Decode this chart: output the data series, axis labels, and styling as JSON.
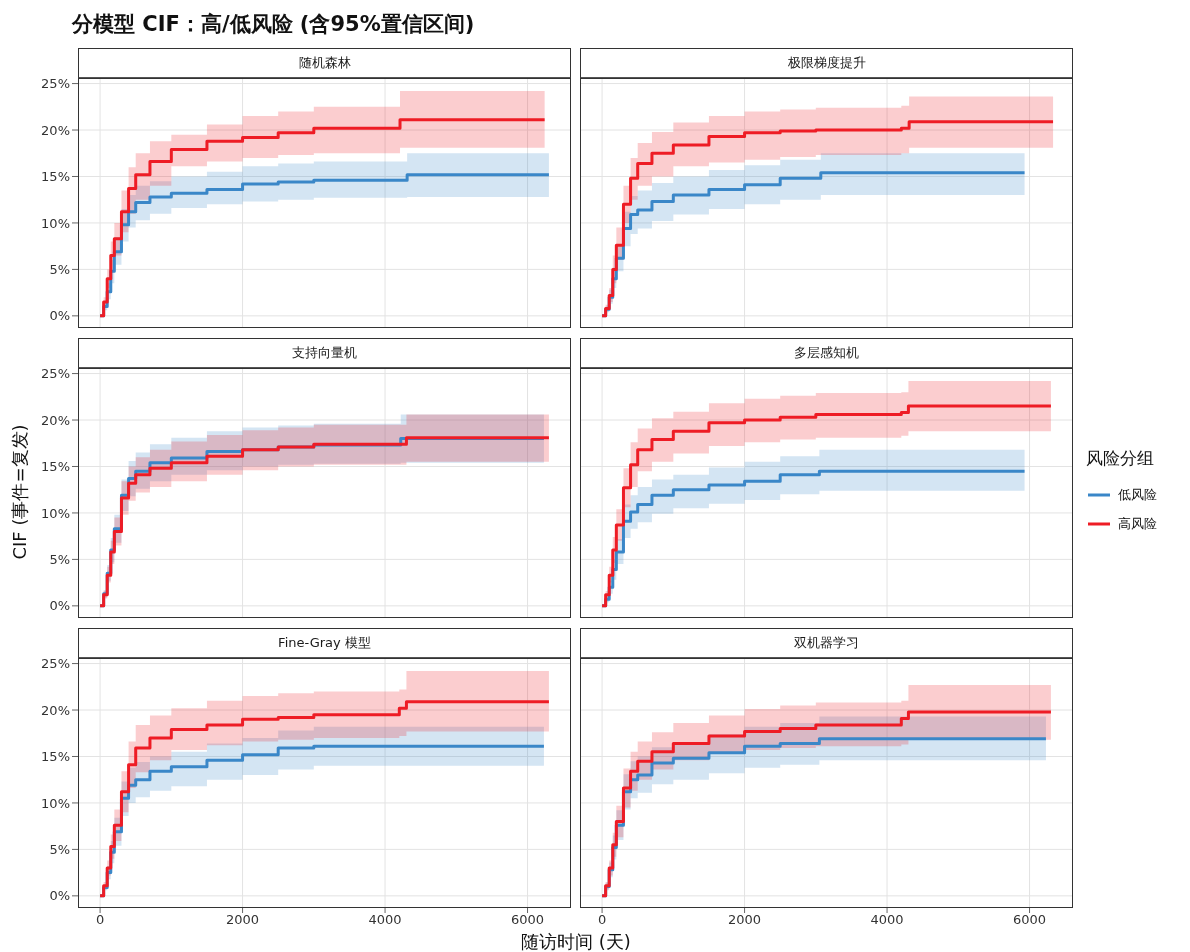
{
  "chart_data": [
    {
      "type": "step",
      "title": "随机森林",
      "annotations": [
        "分模型 CIF：高/低风险 (含95%置信区间)"
      ],
      "legend": "right",
      "legend_title": "风险分组",
      "xlim": [
        -310,
        6610
      ],
      "xticks": [
        0,
        2000,
        4000,
        6000
      ],
      "ylim": [
        -1.2,
        25.6
      ],
      "yticks": [
        {
          "value": 0,
          "label": "0%"
        },
        {
          "value": 5,
          "label": "5%"
        },
        {
          "value": 10,
          "label": "10%"
        },
        {
          "value": 15,
          "label": "15%"
        },
        {
          "value": 20,
          "label": "20%"
        },
        {
          "value": 25,
          "label": "25%"
        }
      ],
      "tick_labels": "y",
      "grid": true,
      "marker": "none",
      "line_style": "solid",
      "series": [
        {
          "name": "低风险",
          "color": "#3a87c8",
          "x": [
            0,
            50,
            100,
            150,
            200,
            300,
            400,
            500,
            700,
            1000,
            1500,
            2000,
            2500,
            3000,
            4310,
            6300
          ],
          "values": [
            0,
            1,
            2.6,
            4.8,
            6.9,
            9.8,
            11.2,
            12.2,
            12.8,
            13.2,
            13.6,
            14.2,
            14.4,
            14.6,
            15.2,
            15.2
          ],
          "lower": [
            0,
            0.6,
            1.8,
            3.5,
            5.5,
            8,
            9.5,
            10.3,
            11,
            11.6,
            12,
            12.3,
            12.5,
            12.7,
            12.8,
            12.8
          ],
          "upper": [
            0,
            1.5,
            3.5,
            6,
            8.5,
            11.5,
            13,
            14,
            14.5,
            15,
            15.5,
            16.1,
            16.4,
            16.6,
            17.5,
            17.5
          ]
        },
        {
          "name": "高风险",
          "color": "#ee1c25",
          "x": [
            0,
            50,
            100,
            150,
            200,
            300,
            400,
            500,
            700,
            1000,
            1500,
            2000,
            2500,
            3000,
            4210,
            6240
          ],
          "values": [
            0,
            1.5,
            4,
            6.5,
            8.3,
            11.2,
            13.7,
            15.2,
            16.6,
            17.9,
            18.8,
            19.2,
            19.7,
            20.2,
            21.1,
            21.1
          ],
          "lower": [
            0,
            1,
            3,
            5,
            6.5,
            9,
            11,
            12.5,
            14,
            16.1,
            16.6,
            17,
            17.3,
            17.5,
            18.1,
            18.1
          ],
          "upper": [
            0,
            2,
            5,
            8,
            10,
            13.5,
            16,
            17.5,
            18.8,
            19.5,
            20.6,
            21.5,
            22,
            22.5,
            24.2,
            24.2
          ]
        }
      ]
    },
    {
      "type": "step",
      "title": "极限梯度提升",
      "xlim": [
        -310,
        6610
      ],
      "xticks": [
        0,
        2000,
        4000,
        6000
      ],
      "ylim": [
        -1.2,
        25.6
      ],
      "yticks": [
        0,
        5,
        10,
        15,
        20,
        25
      ],
      "tick_labels": false,
      "grid": true,
      "marker": "none",
      "line_style": "solid",
      "series": [
        {
          "color": "#3a87c8",
          "x": [
            0,
            50,
            100,
            150,
            200,
            300,
            400,
            500,
            700,
            1000,
            1500,
            2000,
            2500,
            3070,
            5930
          ],
          "values": [
            0,
            0.7,
            2,
            4,
            6.2,
            9.4,
            10.9,
            11.4,
            12.3,
            13,
            13.6,
            14.1,
            14.8,
            15.4,
            15.4
          ],
          "lower": [
            0,
            0.4,
            1.3,
            3,
            4.8,
            7.5,
            8.8,
            9.4,
            10.2,
            10.9,
            11.5,
            12,
            12.5,
            13,
            13
          ],
          "upper": [
            0,
            1,
            2.8,
            5.2,
            7.6,
            11.2,
            12.9,
            13.5,
            14.3,
            15,
            15.7,
            16.2,
            16.8,
            17.5,
            17.5
          ]
        },
        {
          "color": "#ee1c25",
          "x": [
            0,
            50,
            100,
            150,
            200,
            300,
            400,
            500,
            700,
            1000,
            1500,
            2000,
            2500,
            3000,
            4200,
            4310,
            6330
          ],
          "values": [
            0,
            0.8,
            2.2,
            5,
            7.6,
            12,
            14.8,
            16.4,
            17.5,
            18.4,
            19.3,
            19.7,
            19.9,
            20,
            20.2,
            20.9,
            20.9
          ],
          "lower": [
            0,
            0.5,
            1.5,
            3.5,
            6,
            10,
            12.5,
            14,
            15,
            16.1,
            16.5,
            16.8,
            17.1,
            17.3,
            17.5,
            18.1,
            18.1
          ],
          "upper": [
            0,
            1.2,
            3,
            6.5,
            9.5,
            14,
            17,
            18.6,
            19.8,
            20.8,
            21.5,
            22,
            22.2,
            22.4,
            22.6,
            23.6,
            23.6
          ]
        }
      ]
    },
    {
      "type": "step",
      "title": "支持向量机",
      "ylabel": "CIF (事件=复发)",
      "xlim": [
        -310,
        6610
      ],
      "xticks": [
        0,
        2000,
        4000,
        6000
      ],
      "ylim": [
        -1.2,
        25.6
      ],
      "yticks": [
        {
          "value": 0,
          "label": "0%"
        },
        {
          "value": 5,
          "label": "5%"
        },
        {
          "value": 10,
          "label": "10%"
        },
        {
          "value": 15,
          "label": "15%"
        },
        {
          "value": 20,
          "label": "20%"
        },
        {
          "value": 25,
          "label": "25%"
        }
      ],
      "tick_labels": "y",
      "grid": true,
      "marker": "none",
      "line_style": "solid",
      "series": [
        {
          "color": "#3a87c8",
          "x": [
            0,
            50,
            100,
            150,
            200,
            300,
            400,
            500,
            700,
            1000,
            1500,
            2000,
            2500,
            3000,
            4220,
            6230
          ],
          "values": [
            0,
            1.3,
            3.5,
            6,
            8.3,
            11.9,
            13.7,
            14.5,
            15.4,
            15.9,
            16.6,
            16.8,
            17.1,
            17.3,
            18,
            18
          ],
          "lower": [
            0,
            0.9,
            2.7,
            4.7,
            6.8,
            10.2,
            11.8,
            12.6,
            13.4,
            14.1,
            14.6,
            15,
            15.2,
            15.3,
            15.4,
            15.4
          ],
          "upper": [
            0,
            1.7,
            4.4,
            7.3,
            9.8,
            13.6,
            15.6,
            16.5,
            17.4,
            18.1,
            18.8,
            19.2,
            19.4,
            19.6,
            20.6,
            20.6
          ]
        },
        {
          "color": "#ee1c25",
          "x": [
            0,
            50,
            100,
            150,
            200,
            300,
            400,
            500,
            700,
            1000,
            1500,
            2000,
            2500,
            3000,
            4300,
            6300
          ],
          "values": [
            0,
            1.2,
            3.3,
            5.8,
            8,
            11.6,
            13.2,
            14.1,
            14.8,
            15.4,
            16.1,
            16.8,
            17.1,
            17.4,
            18.1,
            18.1
          ],
          "lower": [
            0,
            0.8,
            2.5,
            4.5,
            6.5,
            9.8,
            11.3,
            12.2,
            12.8,
            13.4,
            14.1,
            14.6,
            15,
            15.2,
            15.5,
            15.5
          ],
          "upper": [
            0,
            1.6,
            4.2,
            7,
            9.5,
            13.4,
            15,
            16,
            16.8,
            17.7,
            18.4,
            18.9,
            19.2,
            19.5,
            20.6,
            20.6
          ]
        }
      ]
    },
    {
      "type": "step",
      "title": "多层感知机",
      "xlim": [
        -310,
        6610
      ],
      "xticks": [
        0,
        2000,
        4000,
        6000
      ],
      "ylim": [
        -1.2,
        25.6
      ],
      "yticks": [
        0,
        5,
        10,
        15,
        20,
        25
      ],
      "tick_labels": false,
      "grid": true,
      "marker": "none",
      "line_style": "solid",
      "series": [
        {
          "color": "#3a87c8",
          "x": [
            0,
            50,
            100,
            150,
            200,
            300,
            400,
            500,
            700,
            1000,
            1500,
            2000,
            2500,
            3050,
            5930
          ],
          "values": [
            0,
            0.7,
            2,
            3.9,
            5.8,
            9.1,
            10.1,
            10.9,
            11.9,
            12.5,
            13,
            13.4,
            14.1,
            14.5,
            14.5
          ],
          "lower": [
            0,
            0.4,
            1.3,
            2.8,
            4.5,
            7.3,
            8.3,
            9,
            9.9,
            10.5,
            11,
            11.4,
            12,
            12.4,
            12.4
          ],
          "upper": [
            0,
            1,
            2.7,
            5,
            7.2,
            10.9,
            11.9,
            12.8,
            13.6,
            14.1,
            14.9,
            15.5,
            16.1,
            16.8,
            16.8
          ]
        },
        {
          "color": "#ee1c25",
          "x": [
            0,
            50,
            100,
            150,
            200,
            300,
            400,
            500,
            700,
            1000,
            1500,
            2000,
            2500,
            3000,
            4200,
            4300,
            6300
          ],
          "values": [
            0,
            1.2,
            3.3,
            6,
            8.7,
            12.7,
            15.2,
            16.8,
            17.9,
            18.8,
            19.7,
            20,
            20.3,
            20.6,
            20.8,
            21.5,
            21.5
          ],
          "lower": [
            0,
            0.8,
            2.5,
            4.6,
            7,
            10.6,
            12.8,
            14.5,
            15.5,
            16.4,
            17.2,
            17.6,
            17.9,
            18.1,
            18.3,
            18.8,
            18.8
          ],
          "upper": [
            0,
            1.6,
            4.2,
            7.4,
            10.4,
            14.8,
            17.6,
            19.1,
            20.2,
            20.9,
            21.8,
            22.3,
            22.6,
            22.9,
            23,
            24.2,
            24.2
          ]
        }
      ]
    },
    {
      "type": "step",
      "title": "Fine-Gray 模型",
      "xlabel": "随访时间 (天)",
      "xlim": [
        -310,
        6610
      ],
      "xticks": [
        0,
        2000,
        4000,
        6000
      ],
      "ylim": [
        -1.2,
        25.6
      ],
      "yticks": [
        {
          "value": 0,
          "label": "0%"
        },
        {
          "value": 5,
          "label": "5%"
        },
        {
          "value": 10,
          "label": "10%"
        },
        {
          "value": 15,
          "label": "15%"
        },
        {
          "value": 20,
          "label": "20%"
        },
        {
          "value": 25,
          "label": "25%"
        }
      ],
      "grid": true,
      "marker": "none",
      "line_style": "solid",
      "series": [
        {
          "color": "#3a87c8",
          "x": [
            0,
            50,
            100,
            150,
            200,
            300,
            400,
            500,
            700,
            1000,
            1500,
            2000,
            2500,
            3000,
            6230
          ],
          "values": [
            0,
            0.9,
            2.5,
            4.7,
            6.9,
            10.5,
            11.9,
            12.5,
            13.4,
            13.9,
            14.6,
            15.2,
            15.9,
            16.1,
            16.1
          ],
          "lower": [
            0,
            0.6,
            1.8,
            3.5,
            5.4,
            8.6,
            10,
            10.6,
            11.3,
            11.8,
            12.5,
            13,
            13.6,
            14,
            14
          ],
          "upper": [
            0,
            1.2,
            3.2,
            5.9,
            8.4,
            12.3,
            13.8,
            14.4,
            15,
            15.5,
            16.4,
            17,
            17.8,
            18.2,
            18.2
          ]
        },
        {
          "color": "#ee1c25",
          "x": [
            0,
            50,
            100,
            150,
            200,
            300,
            400,
            500,
            700,
            1000,
            1500,
            2000,
            2500,
            3000,
            4200,
            4300,
            6300
          ],
          "values": [
            0,
            1.1,
            3,
            5.3,
            7.6,
            11.2,
            14.1,
            15.9,
            17,
            17.9,
            18.4,
            19,
            19.2,
            19.5,
            20.2,
            20.9,
            20.9
          ],
          "lower": [
            0,
            0.7,
            2.2,
            4,
            5.9,
            9,
            11.6,
            13.3,
            14.6,
            15.7,
            16.2,
            16.6,
            16.8,
            17,
            17.2,
            17.7,
            17.7
          ],
          "upper": [
            0,
            1.5,
            3.8,
            6.6,
            9.3,
            13.4,
            16.6,
            18.4,
            19.4,
            20.2,
            21,
            21.5,
            21.8,
            22,
            22.2,
            24.2,
            24.2
          ]
        }
      ]
    },
    {
      "type": "step",
      "title": "双机器学习",
      "xlim": [
        -310,
        6610
      ],
      "xticks": [
        0,
        2000,
        4000,
        6000
      ],
      "ylim": [
        -1.2,
        25.6
      ],
      "yticks": [
        0,
        5,
        10,
        15,
        20,
        25
      ],
      "tick_labels": "x",
      "grid": true,
      "marker": "none",
      "line_style": "solid",
      "series": [
        {
          "color": "#3a87c8",
          "x": [
            0,
            50,
            100,
            150,
            200,
            300,
            400,
            500,
            700,
            1000,
            1500,
            2000,
            2500,
            3050,
            6230
          ],
          "values": [
            0,
            1,
            2.8,
            5.2,
            7.6,
            11.2,
            12.5,
            13,
            14.3,
            14.8,
            15.4,
            16.1,
            16.4,
            16.9,
            16.9
          ],
          "lower": [
            0,
            0.6,
            2,
            3.9,
            6,
            9.3,
            10.5,
            11.1,
            12,
            12.5,
            13.2,
            13.8,
            14.1,
            14.6,
            14.6
          ],
          "upper": [
            0,
            1.4,
            3.6,
            6.5,
            9.2,
            13.1,
            14.5,
            15,
            16,
            16.4,
            17.4,
            18.2,
            18.6,
            19.3,
            19.3
          ]
        },
        {
          "color": "#ee1c25",
          "x": [
            0,
            50,
            100,
            150,
            200,
            300,
            400,
            500,
            700,
            1000,
            1500,
            2000,
            2500,
            3000,
            4200,
            4300,
            6300
          ],
          "values": [
            0,
            1.1,
            3,
            5.5,
            8,
            11.6,
            13.4,
            14.5,
            15.5,
            16.4,
            17.2,
            17.7,
            18,
            18.4,
            19.1,
            19.8,
            19.8
          ],
          "lower": [
            0,
            0.7,
            2.2,
            4.2,
            6.3,
            9.5,
            11.3,
            12.5,
            13.6,
            14.6,
            15.3,
            15.7,
            15.9,
            16.1,
            16.3,
            16.8,
            16.8
          ],
          "upper": [
            0,
            1.5,
            3.8,
            6.8,
            9.7,
            13.7,
            15.5,
            16.6,
            17.6,
            18.6,
            19.4,
            20.1,
            20.5,
            20.8,
            21,
            22.7,
            22.7
          ]
        }
      ]
    }
  ]
}
